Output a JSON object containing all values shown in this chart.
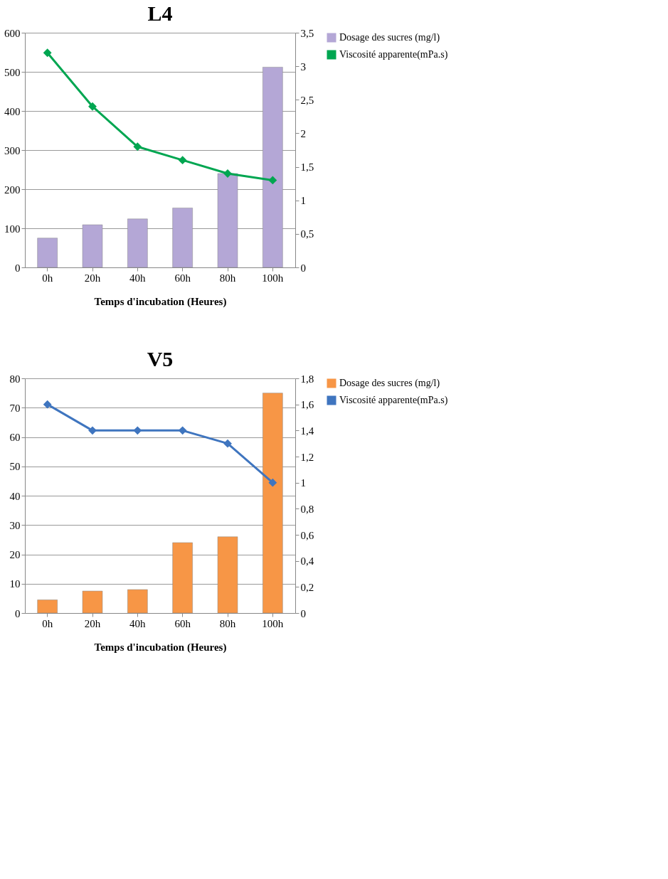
{
  "chart_data": [
    {
      "type": "bar",
      "title": "L4",
      "xlabel": "Temps d'incubation (Heures)",
      "categories": [
        "0h",
        "20h",
        "40h",
        "60h",
        "80h",
        "100h"
      ],
      "series": [
        {
          "name": "Dosage des sucres (mg/l)",
          "color": "#b4a7d6",
          "values": [
            75,
            109,
            124,
            152,
            240,
            512
          ]
        },
        {
          "name": "Viscosité apparente(mPa.s)",
          "type": "line",
          "axis": "y2",
          "color": "#00a651",
          "marker": "diamond",
          "values": [
            3.2,
            2.4,
            1.8,
            1.6,
            1.4,
            1.3
          ]
        }
      ],
      "ylim": [
        0,
        600
      ],
      "yticks": [
        0,
        100,
        200,
        300,
        400,
        500,
        600
      ],
      "y2lim": [
        0,
        3.5
      ],
      "y2ticks": [
        0,
        {
          "value": 0.5,
          "label": "0,5"
        },
        1,
        {
          "value": 1.5,
          "label": "1,5"
        },
        2,
        {
          "value": 2.5,
          "label": "2,5"
        },
        3,
        {
          "value": 3.5,
          "label": "3,5"
        }
      ],
      "grid": "y",
      "legend": "right"
    },
    {
      "type": "bar",
      "title": "V5",
      "xlabel": "Temps d'incubation (Heures)",
      "categories": [
        "0h",
        "20h",
        "40h",
        "60h",
        "80h",
        "100h"
      ],
      "series": [
        {
          "name": "Dosage des sucres (mg/l)",
          "color": "#f79646",
          "values": [
            4.5,
            7.5,
            8,
            24,
            26,
            75
          ]
        },
        {
          "name": "Viscosité apparente(mPa.s)",
          "type": "line",
          "axis": "y2",
          "color": "#3f75bf",
          "marker": "diamond",
          "values": [
            1.6,
            1.4,
            1.4,
            1.4,
            1.3,
            1.0
          ]
        }
      ],
      "ylim": [
        0,
        80
      ],
      "yticks": [
        0,
        10,
        20,
        30,
        40,
        50,
        60,
        70,
        80
      ],
      "y2lim": [
        0,
        1.8
      ],
      "y2ticks": [
        0,
        {
          "value": 0.2,
          "label": "0,2"
        },
        {
          "value": 0.4,
          "label": "0,4"
        },
        {
          "value": 0.6,
          "label": "0,6"
        },
        {
          "value": 0.8,
          "label": "0,8"
        },
        1,
        {
          "value": 1.2,
          "label": "1,2"
        },
        {
          "value": 1.4,
          "label": "1,4"
        },
        {
          "value": 1.6,
          "label": "1,6"
        },
        {
          "value": 1.8,
          "label": "1,8"
        }
      ],
      "grid": "y",
      "legend": "right"
    }
  ]
}
